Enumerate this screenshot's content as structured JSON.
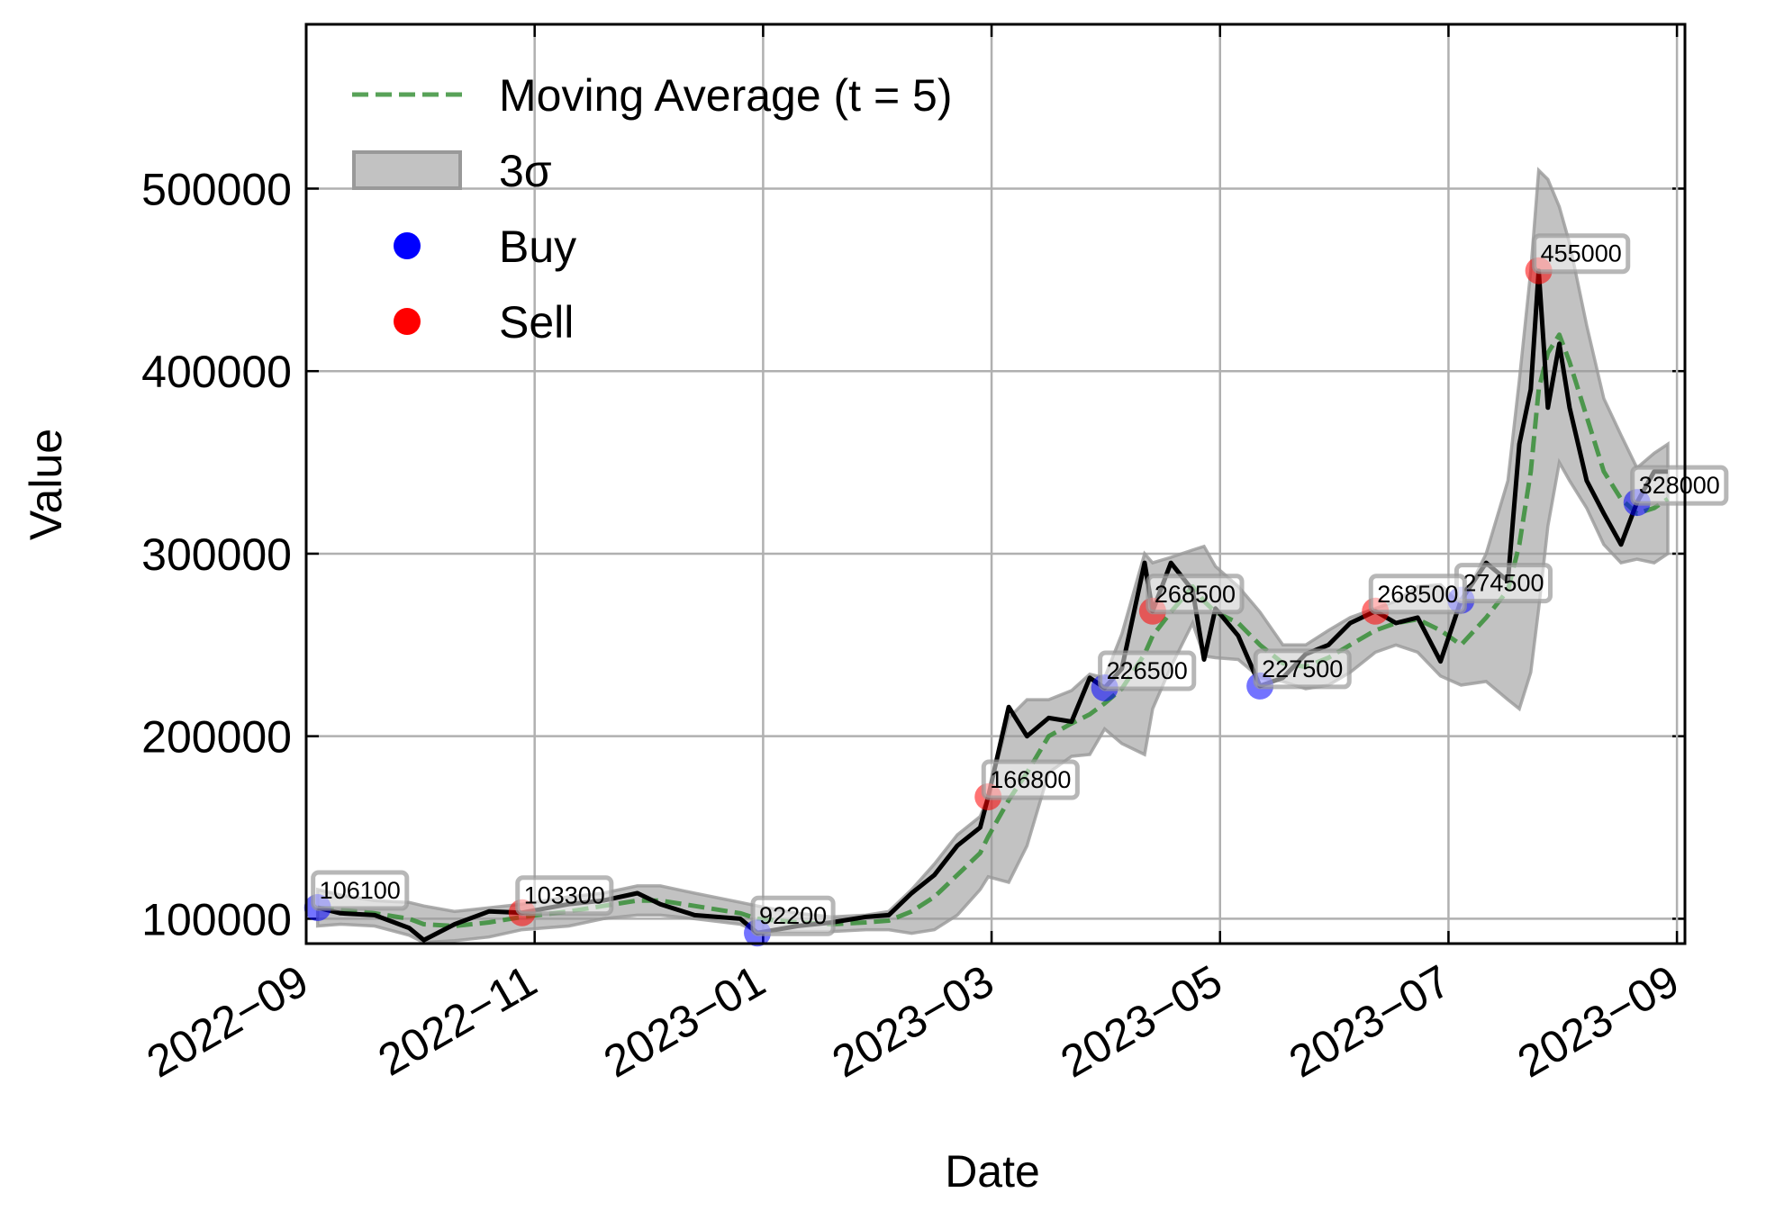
{
  "chart_data": {
    "type": "line",
    "xlabel": "Date",
    "ylabel": "Value",
    "grid": true,
    "legend": "upper left",
    "xlim": [
      0,
      12.07
    ],
    "xticks": [
      {
        "value": 0,
        "label": "2022−09"
      },
      {
        "value": 2,
        "label": "2022−11"
      },
      {
        "value": 4,
        "label": "2023−01"
      },
      {
        "value": 6,
        "label": "2023−03"
      },
      {
        "value": 8,
        "label": "2023−05"
      },
      {
        "value": 10,
        "label": "2023−07"
      },
      {
        "value": 12,
        "label": "2023−09"
      }
    ],
    "ylim": [
      86400,
      590000
    ],
    "yticks": [
      100000,
      200000,
      300000,
      400000,
      500000
    ],
    "x": [
      0.1,
      0.3,
      0.6,
      0.9,
      1.03,
      1.3,
      1.6,
      1.89,
      2.3,
      2.6,
      2.9,
      3.1,
      3.4,
      3.8,
      3.95,
      4.3,
      4.6,
      4.9,
      5.1,
      5.3,
      5.5,
      5.7,
      5.9,
      5.97,
      6.15,
      6.31,
      6.5,
      6.7,
      6.86,
      6.99,
      7.14,
      7.34,
      7.41,
      7.57,
      7.76,
      7.86,
      7.96,
      8.16,
      8.35,
      8.55,
      8.75,
      8.95,
      9.14,
      9.36,
      9.54,
      9.73,
      9.93,
      10.11,
      10.33,
      10.52,
      10.62,
      10.72,
      10.79,
      10.87,
      10.97,
      11.06,
      11.21,
      11.36,
      11.51,
      11.65,
      11.8,
      11.92
    ],
    "series": [
      {
        "name": "Moving Average (t = 5)",
        "type": "line",
        "style": "dashed",
        "color": "#2e8b2e",
        "values": [
          106000,
          105000,
          103000,
          100000,
          97000,
          96000,
          98000,
          101000,
          104000,
          107000,
          110000,
          110000,
          107000,
          103000,
          100000,
          98000,
          97000,
          98000,
          99000,
          104000,
          112000,
          124000,
          136000,
          145000,
          165000,
          180000,
          200000,
          207000,
          212000,
          218000,
          226000,
          245000,
          255000,
          268000,
          282000,
          274000,
          268000,
          262000,
          250000,
          240000,
          238000,
          243000,
          250000,
          258000,
          262000,
          264000,
          258000,
          250000,
          265000,
          280000,
          305000,
          345000,
          390000,
          410000,
          420000,
          405000,
          375000,
          345000,
          330000,
          322000,
          325000,
          330000
        ]
      },
      {
        "name": "3σ",
        "type": "band",
        "color": "#999999",
        "lower": [
          96000,
          97000,
          96000,
          91000,
          87000,
          88000,
          90000,
          94000,
          96000,
          100000,
          102000,
          102000,
          100000,
          97000,
          93000,
          93000,
          93000,
          94000,
          94000,
          92000,
          94000,
          102000,
          116000,
          123000,
          120000,
          140000,
          180000,
          189000,
          190000,
          204000,
          196000,
          190000,
          215000,
          238000,
          262000,
          244000,
          243000,
          242000,
          232000,
          230000,
          226000,
          228000,
          235000,
          246000,
          250000,
          246000,
          233000,
          228000,
          230000,
          220000,
          215000,
          235000,
          270000,
          315000,
          350000,
          340000,
          325000,
          305000,
          295000,
          297000,
          295000,
          300000
        ],
        "upper": [
          116000,
          113000,
          110000,
          109000,
          107000,
          104000,
          106000,
          108000,
          112000,
          114000,
          118000,
          118000,
          114000,
          109000,
          107000,
          103000,
          101000,
          102000,
          104000,
          116000,
          130000,
          146000,
          156000,
          167000,
          210000,
          220000,
          220000,
          225000,
          234000,
          232000,
          256000,
          300000,
          295000,
          298000,
          302000,
          304000,
          293000,
          282000,
          268000,
          250000,
          250000,
          258000,
          265000,
          270000,
          274000,
          282000,
          283000,
          272000,
          300000,
          340000,
          395000,
          455000,
          510000,
          505000,
          490000,
          470000,
          425000,
          385000,
          365000,
          347000,
          355000,
          360000
        ]
      },
      {
        "name": "Buy",
        "type": "scatter",
        "color": "#0000ff",
        "x": [
          0.1,
          3.95,
          6.99,
          8.35,
          10.11,
          11.65
        ],
        "values": [
          106100,
          92200,
          226500,
          227500,
          274500,
          328000
        ]
      },
      {
        "name": "Sell",
        "type": "scatter",
        "color": "#ff0000",
        "x": [
          1.89,
          5.97,
          7.41,
          9.36,
          10.79
        ],
        "values": [
          103300,
          166800,
          268500,
          268500,
          455000
        ]
      },
      {
        "type": "line",
        "color": "#000000",
        "values": [
          106100,
          103000,
          102000,
          95000,
          88300,
          97000,
          104000,
          103300,
          108000,
          110000,
          114000,
          108000,
          102000,
          100000,
          92200,
          96000,
          98000,
          101000,
          102000,
          114000,
          124000,
          140000,
          150000,
          166800,
          216000,
          200000,
          210000,
          208000,
          232000,
          226500,
          237000,
          295000,
          268500,
          295000,
          280000,
          242000,
          270000,
          255000,
          227500,
          232000,
          245000,
          250000,
          262000,
          268500,
          262000,
          265000,
          241000,
          274500,
          295000,
          285000,
          360000,
          390000,
          455000,
          380000,
          415000,
          380000,
          340000,
          322000,
          305000,
          328000,
          345000,
          345000
        ]
      }
    ]
  }
}
